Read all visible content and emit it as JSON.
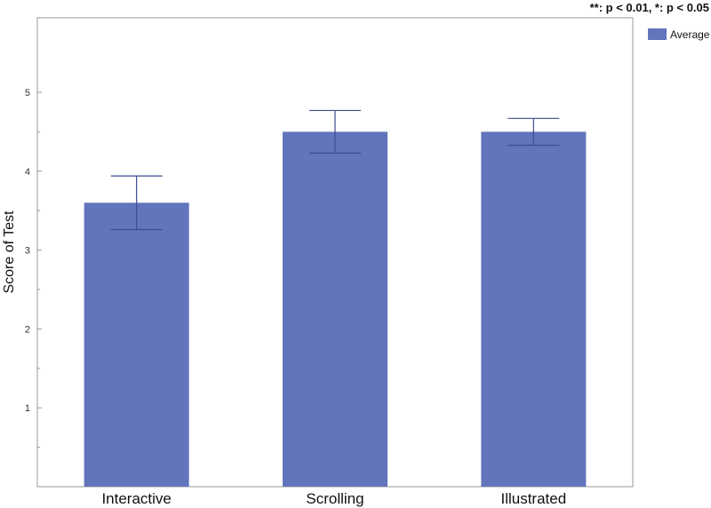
{
  "annotation": "**: p < 0.01, *: p < 0.05",
  "colors": {
    "bar": "#6274bb",
    "error": "#3d4c8f",
    "frame": "#9a9a9a"
  },
  "chart_data": {
    "type": "bar",
    "categories": [
      "Interactive",
      "Scrolling",
      "Illustrated"
    ],
    "series": [
      {
        "name": "Average",
        "values": [
          3.6,
          4.5,
          4.5
        ],
        "error_low": [
          3.26,
          4.23,
          4.33
        ],
        "error_high": [
          3.94,
          4.77,
          4.67
        ]
      }
    ],
    "title": "",
    "xlabel": "",
    "ylabel": "Score of Test",
    "ylim": [
      0,
      5.5
    ],
    "yticks": [
      1,
      2,
      3,
      4,
      5
    ],
    "grid": false,
    "legend": "top-right"
  }
}
